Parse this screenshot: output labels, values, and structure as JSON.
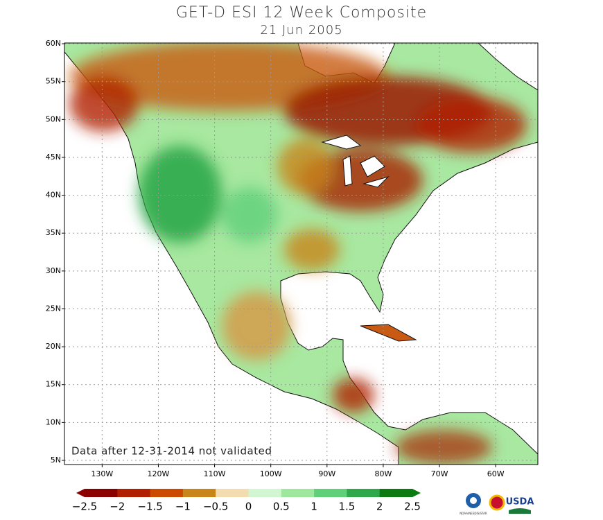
{
  "header": {
    "title": "GET-D ESI 12 Week Composite",
    "subtitle": "21 Jun 2005"
  },
  "map": {
    "lonlim": [
      -136.7,
      -52.5
    ],
    "latlim": [
      4.45,
      60.1
    ],
    "lon_ticks": [
      {
        "value": -130,
        "label": "130W"
      },
      {
        "value": -120,
        "label": "120W"
      },
      {
        "value": -110,
        "label": "110W"
      },
      {
        "value": -100,
        "label": "100W"
      },
      {
        "value": -90,
        "label": "90W"
      },
      {
        "value": -80,
        "label": "80W"
      },
      {
        "value": -70,
        "label": "70W"
      },
      {
        "value": -60,
        "label": "60W"
      }
    ],
    "lat_ticks": [
      {
        "value": 5,
        "label": "5N"
      },
      {
        "value": 10,
        "label": "10N"
      },
      {
        "value": 15,
        "label": "15N"
      },
      {
        "value": 20,
        "label": "20N"
      },
      {
        "value": 25,
        "label": "25N"
      },
      {
        "value": 30,
        "label": "30N"
      },
      {
        "value": 35,
        "label": "35N"
      },
      {
        "value": 40,
        "label": "40N"
      },
      {
        "value": 45,
        "label": "45N"
      },
      {
        "value": 50,
        "label": "50N"
      },
      {
        "value": 55,
        "label": "55N"
      },
      {
        "value": 60,
        "label": "60N"
      }
    ],
    "grid": true,
    "note": "Data after 12-31-2014 not validated"
  },
  "colorbar": {
    "lim": [
      -2.5,
      2.5
    ],
    "colors": [
      "#8b0000",
      "#b02000",
      "#cc4a00",
      "#c8861a",
      "#f2dcb0",
      "#d2f5d2",
      "#9ee89e",
      "#5fcf7a",
      "#2ea84a",
      "#0b7a10"
    ],
    "ticks": [
      {
        "value": -2.5,
        "label": "−2.5"
      },
      {
        "value": -2,
        "label": "−2"
      },
      {
        "value": -1.5,
        "label": "−1.5"
      },
      {
        "value": -1,
        "label": "−1"
      },
      {
        "value": -0.5,
        "label": "−0.5"
      },
      {
        "value": 0,
        "label": "0"
      },
      {
        "value": 0.5,
        "label": "0.5"
      },
      {
        "value": 1,
        "label": "1"
      },
      {
        "value": 1.5,
        "label": "1.5"
      },
      {
        "value": 2,
        "label": "2"
      },
      {
        "value": 2.5,
        "label": "2.5"
      }
    ]
  },
  "logos": {
    "noaa": "NOAA/NESDIS/STAR",
    "usda": "USDA"
  }
}
